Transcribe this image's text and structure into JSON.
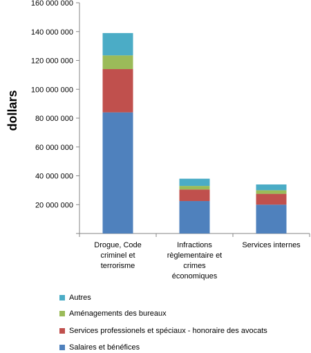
{
  "chart_data": {
    "type": "bar",
    "stacked": true,
    "ylabel": "dollars",
    "ylim": [
      0,
      160000000
    ],
    "yticks": [
      0,
      20000000,
      40000000,
      60000000,
      80000000,
      100000000,
      120000000,
      140000000,
      160000000
    ],
    "ytick_labels": [
      "",
      "20 000 000",
      "40 000 000",
      "60 000 000",
      "80 000 000",
      "100 000 000",
      "120 000 000",
      "140 000 000",
      "160 000 000"
    ],
    "categories": [
      [
        "Drogue, Code",
        "criminel et",
        "terrorisme"
      ],
      [
        "Infractions",
        "règlementaire et",
        "crimes",
        "économiques"
      ],
      [
        "Services internes"
      ]
    ],
    "series": [
      {
        "name": "Salaires et bénéfices",
        "color": "#4F81BD",
        "values": [
          84000000,
          22500000,
          20000000
        ]
      },
      {
        "name": "Services professionels et spéciaux - honoraire des avocats",
        "color": "#C0504D",
        "values": [
          30000000,
          8000000,
          7500000
        ]
      },
      {
        "name": "Aménagements des bureaux",
        "color": "#9BBB59",
        "values": [
          9500000,
          2500000,
          2500000
        ]
      },
      {
        "name": "Autres",
        "color": "#4BACC6",
        "values": [
          15500000,
          5000000,
          4000000
        ]
      }
    ],
    "grid": false,
    "legend_position": "bottom"
  }
}
